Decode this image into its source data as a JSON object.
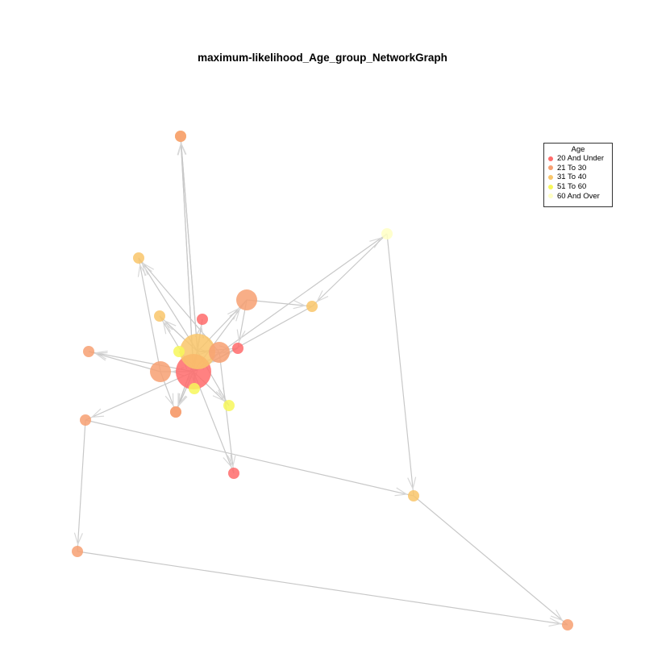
{
  "title": "maximum-likelihood_Age_group_NetworkGraph",
  "legend": {
    "title": "Age",
    "items": [
      {
        "label": "20 And Under",
        "color": "#ff6b6b"
      },
      {
        "label": "21 To 30",
        "color": "#f7a072"
      },
      {
        "label": "31 To 40",
        "color": "#f9c66a"
      },
      {
        "label": "51 To 60",
        "color": "#f7f75a"
      },
      {
        "label": "60 And Over",
        "color": "#ffffc4"
      }
    ]
  },
  "colors": {
    "edge": "#c8c8c8",
    "arrow": "#d8d8d8"
  },
  "chart_data": {
    "type": "network",
    "directed": true,
    "nodes": [
      {
        "id": "n1",
        "group": "20 And Under",
        "size": 3
      },
      {
        "id": "n2",
        "group": "31 To 40",
        "size": 3
      },
      {
        "id": "n3",
        "group": "21 To 30",
        "size": 2
      },
      {
        "id": "n4",
        "group": "20 And Under",
        "size": 1
      },
      {
        "id": "n5",
        "group": "21 To 30",
        "size": 2
      },
      {
        "id": "n6",
        "group": "21 To 30",
        "size": 2
      },
      {
        "id": "n7",
        "group": "21 To 30",
        "size": 1
      },
      {
        "id": "n8",
        "group": "31 To 40",
        "size": 1
      },
      {
        "id": "n9",
        "group": "31 To 40",
        "size": 1
      },
      {
        "id": "n10",
        "group": "21 To 30",
        "size": 1
      },
      {
        "id": "n11",
        "group": "31 To 40",
        "size": 1
      },
      {
        "id": "n12",
        "group": "60 And Over",
        "size": 1
      },
      {
        "id": "n13",
        "group": "31 To 40",
        "size": 1
      },
      {
        "id": "n14",
        "group": "21 To 30",
        "size": 1
      },
      {
        "id": "n15",
        "group": "20 And Under",
        "size": 1
      },
      {
        "id": "n16",
        "group": "51 To 60",
        "size": 1
      },
      {
        "id": "n17",
        "group": "21 To 30",
        "size": 1
      },
      {
        "id": "n18",
        "group": "21 To 30",
        "size": 1
      },
      {
        "id": "n19",
        "group": "20 And Under",
        "size": 1
      },
      {
        "id": "n20",
        "group": "21 To 30",
        "size": 1
      },
      {
        "id": "n21",
        "group": "51 To 60",
        "size": 1
      },
      {
        "id": "n22",
        "group": "51 To 60",
        "size": 1
      },
      {
        "id": "n23",
        "group": "31 To 40",
        "size": 1
      },
      {
        "id": "n24",
        "group": "21 To 30",
        "size": 1
      }
    ],
    "edges": [
      [
        "n1",
        "n9"
      ],
      [
        "n2",
        "n9"
      ],
      [
        "n1",
        "n10"
      ],
      [
        "n2",
        "n10"
      ],
      [
        "n2",
        "n11"
      ],
      [
        "n5",
        "n11"
      ],
      [
        "n3",
        "n11"
      ],
      [
        "n1",
        "n7"
      ],
      [
        "n2",
        "n7"
      ],
      [
        "n6",
        "n13"
      ],
      [
        "n1",
        "n14"
      ],
      [
        "n1",
        "n15"
      ],
      [
        "n2",
        "n15"
      ],
      [
        "n1",
        "n18"
      ],
      [
        "n2",
        "n18"
      ],
      [
        "n5",
        "n18"
      ],
      [
        "n14",
        "n20"
      ],
      [
        "n20",
        "n24"
      ],
      [
        "n23",
        "n24"
      ],
      [
        "n14",
        "n23"
      ],
      [
        "n12",
        "n23"
      ],
      [
        "n1",
        "n12"
      ],
      [
        "n1",
        "n6"
      ],
      [
        "n2",
        "n6"
      ],
      [
        "n1",
        "n5"
      ],
      [
        "n1",
        "n3"
      ],
      [
        "n2",
        "n3"
      ],
      [
        "n1",
        "n2"
      ],
      [
        "n1",
        "n16"
      ],
      [
        "n1",
        "n21"
      ],
      [
        "n2",
        "n22"
      ],
      [
        "n1",
        "n17"
      ],
      [
        "n5",
        "n17"
      ],
      [
        "n1",
        "n8"
      ],
      [
        "n2",
        "n8"
      ],
      [
        "n1",
        "n4"
      ],
      [
        "n2",
        "n4"
      ],
      [
        "n6",
        "n4"
      ],
      [
        "n1",
        "n19"
      ],
      [
        "n3",
        "n19"
      ],
      [
        "n1",
        "n22"
      ],
      [
        "n13",
        "n1"
      ],
      [
        "n12",
        "n13"
      ]
    ]
  }
}
